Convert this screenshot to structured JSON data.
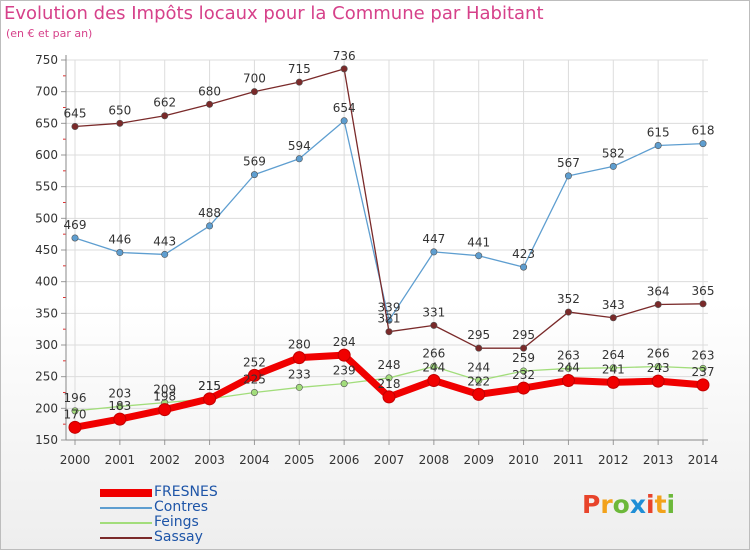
{
  "header": {
    "title": "Evolution des Impôts locaux pour la Commune par Habitant",
    "subtitle": "(en € et par an)"
  },
  "logo": {
    "text": "Proxiti",
    "colors": [
      "#e8442b",
      "#f2a21b",
      "#6cb83a",
      "#1f8ed6",
      "#e8442b",
      "#f2a21b",
      "#6cb83a"
    ]
  },
  "chart_data": {
    "type": "line",
    "x": [
      "2000",
      "2001",
      "2002",
      "2003",
      "2004",
      "2005",
      "2006",
      "2007",
      "2008",
      "2009",
      "2010",
      "2011",
      "2012",
      "2013",
      "2014"
    ],
    "ylim": [
      150,
      750
    ],
    "yticks": [
      150,
      200,
      250,
      300,
      350,
      400,
      450,
      500,
      550,
      600,
      650,
      700,
      750
    ],
    "grid": true,
    "legend_position": "bottom-left",
    "series": [
      {
        "name": "FRESNES",
        "color": "#f00000",
        "values": [
          170,
          183,
          198,
          215,
          252,
          280,
          284,
          218,
          244,
          222,
          232,
          244,
          241,
          243,
          237
        ]
      },
      {
        "name": "Contres",
        "color": "#5e9ed0",
        "values": [
          469,
          446,
          443,
          488,
          569,
          594,
          654,
          339,
          447,
          441,
          423,
          567,
          582,
          615,
          618
        ]
      },
      {
        "name": "Feings",
        "color": "#a2dd7b",
        "values": [
          196,
          203,
          209,
          215,
          225,
          233,
          239,
          248,
          266,
          244,
          259,
          263,
          264,
          266,
          263
        ]
      },
      {
        "name": "Sassay",
        "color": "#7a2a2a",
        "values": [
          645,
          650,
          662,
          680,
          700,
          715,
          736,
          321,
          331,
          295,
          295,
          352,
          343,
          364,
          365
        ]
      }
    ]
  }
}
